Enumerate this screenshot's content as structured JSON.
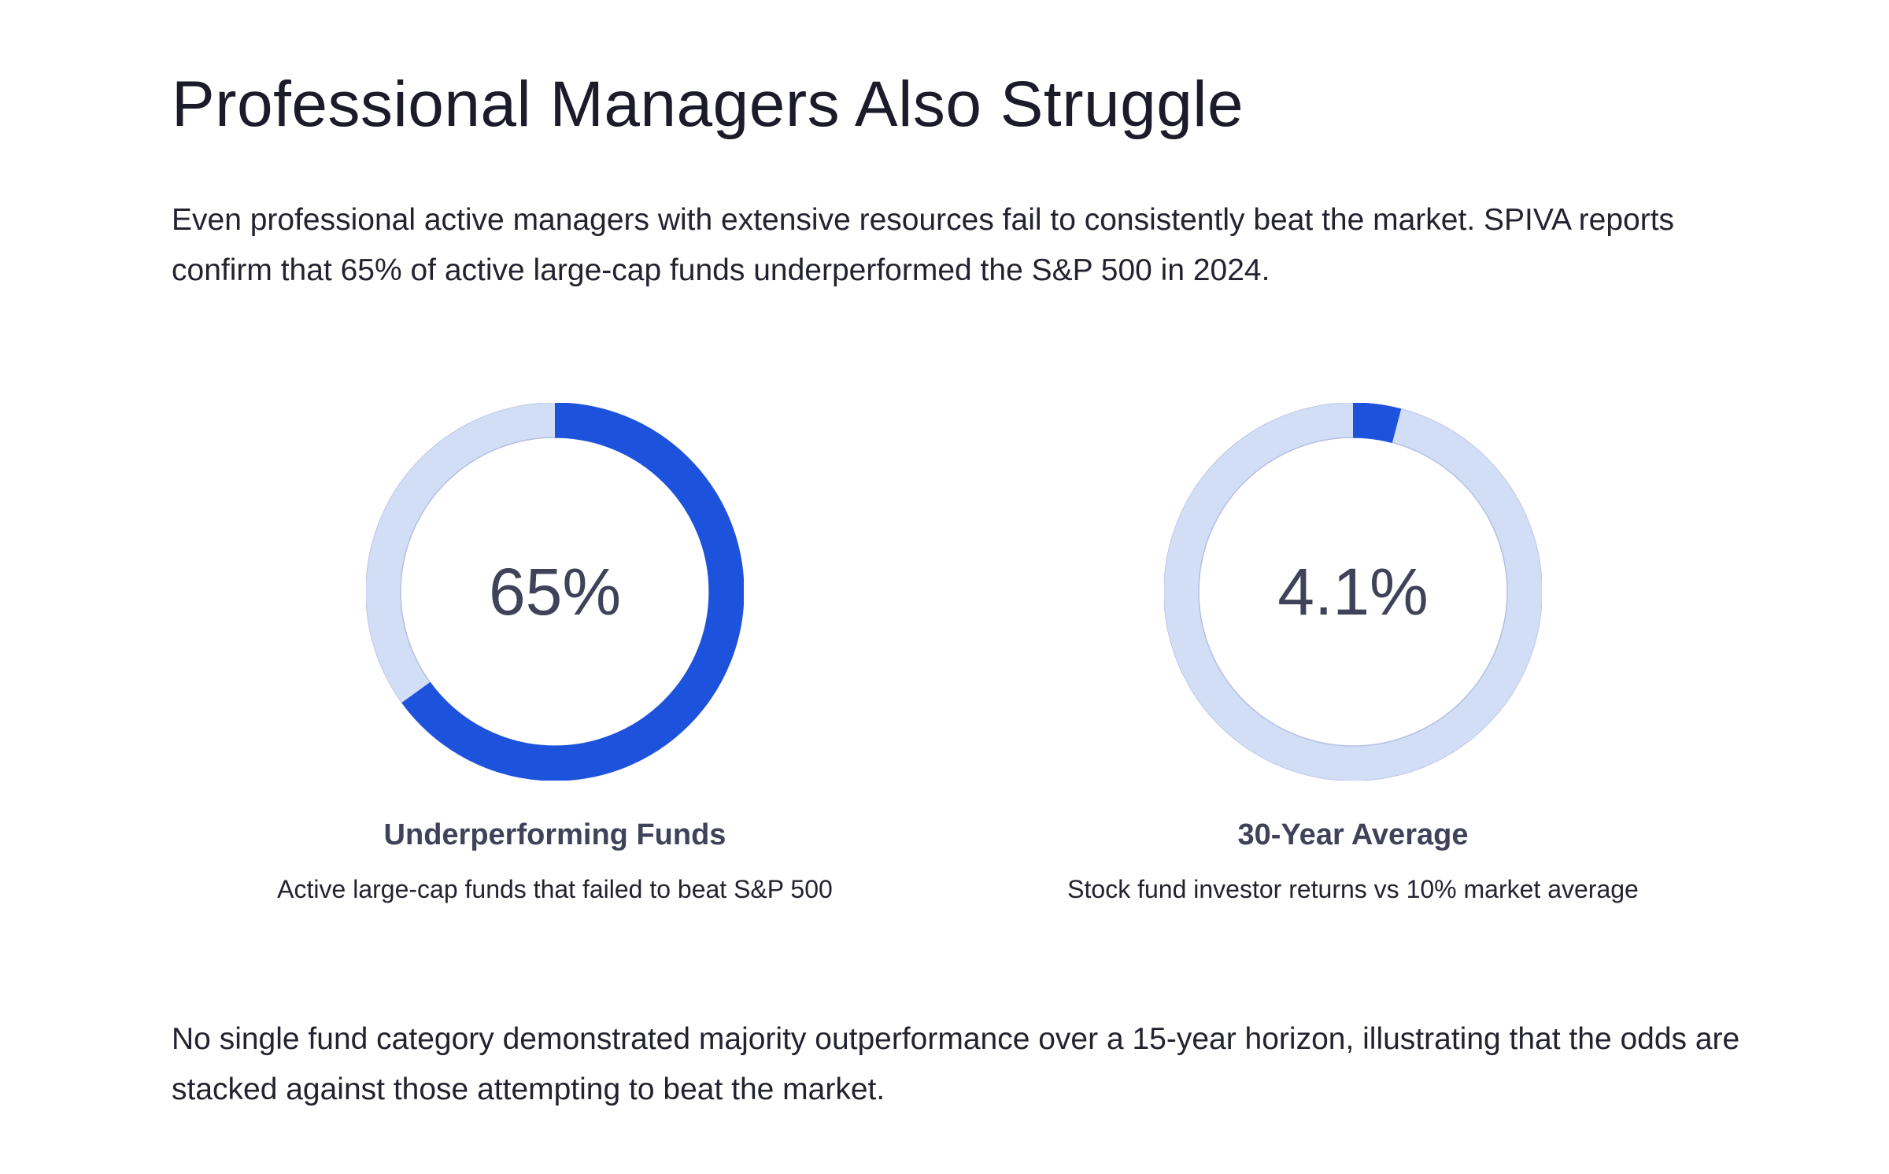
{
  "title": "Professional Managers Also Struggle",
  "intro_text": "Even professional active managers with extensive resources fail to consistently beat the market. SPIVA reports confirm that 65% of active large-cap funds underperformed the S&P 500 in 2024.",
  "outro_text": "No single fund category demonstrated majority outperformance over a 15-year horizon, illustrating that the odds are stacked against those attempting to beat the market.",
  "colors": {
    "accent": "#1c52dc",
    "track": "#d2ddf6",
    "track_stroke": "#b3c0e2"
  },
  "chart_data": [
    {
      "type": "pie",
      "value": 65,
      "value_label": "65%",
      "label": "Underperforming Funds",
      "description": "Active large-cap funds that failed to beat S&P 500"
    },
    {
      "type": "pie",
      "value": 4.1,
      "value_label": "4.1%",
      "label": "30-Year Average",
      "description": "Stock fund investor returns vs 10% market average"
    }
  ]
}
